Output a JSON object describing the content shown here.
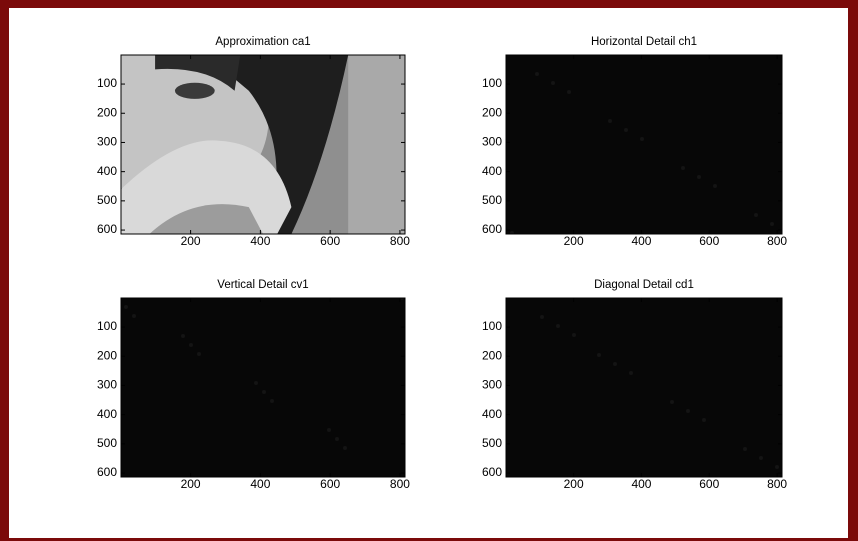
{
  "chart_data": [
    {
      "type": "image",
      "title": "Approximation ca1",
      "xlim": [
        0.5,
        814.5
      ],
      "ylim": [
        0.5,
        613.5
      ],
      "y_reversed": true,
      "xticks": [
        200,
        400,
        600,
        800
      ],
      "yticks": [
        100,
        200,
        300,
        400,
        500,
        600
      ]
    },
    {
      "type": "image",
      "title": "Horizontal Detail ch1",
      "xlim": [
        0.5,
        814.5
      ],
      "ylim": [
        0.5,
        613.5
      ],
      "y_reversed": true,
      "xticks": [
        200,
        400,
        600,
        800
      ],
      "yticks": [
        100,
        200,
        300,
        400,
        500,
        600
      ]
    },
    {
      "type": "image",
      "title": "Vertical Detail cv1",
      "xlim": [
        0.5,
        814.5
      ],
      "ylim": [
        0.5,
        613.5
      ],
      "y_reversed": true,
      "xticks": [
        200,
        400,
        600,
        800
      ],
      "yticks": [
        100,
        200,
        300,
        400,
        500,
        600
      ]
    },
    {
      "type": "image",
      "title": "Diagonal Detail cd1",
      "xlim": [
        0.5,
        814.5
      ],
      "ylim": [
        0.5,
        613.5
      ],
      "y_reversed": true,
      "xticks": [
        200,
        400,
        600,
        800
      ],
      "yticks": [
        100,
        200,
        300,
        400,
        500,
        600
      ]
    }
  ]
}
